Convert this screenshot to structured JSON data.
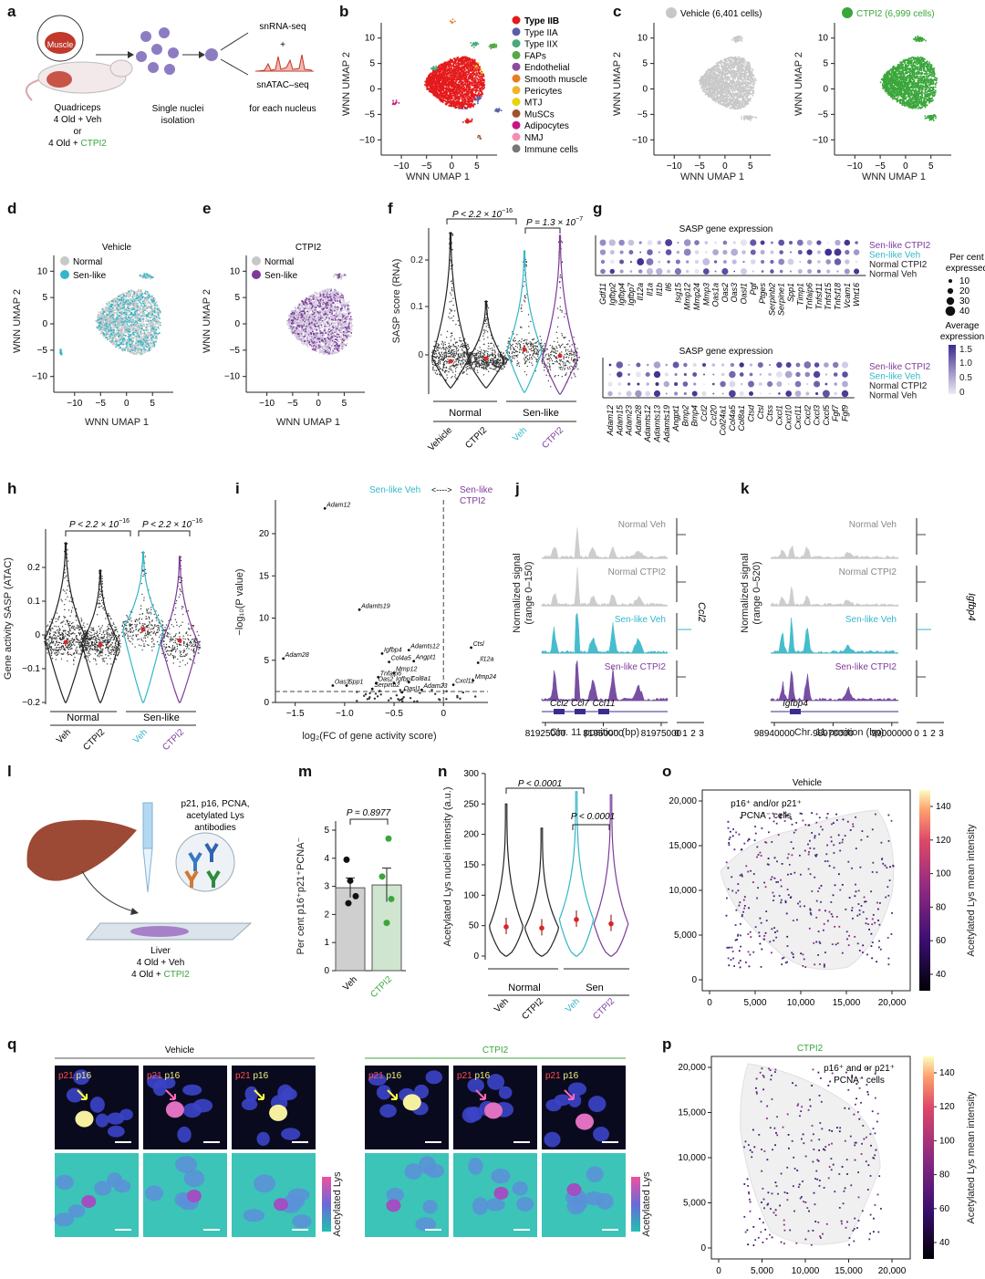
{
  "panel_letters": [
    "a",
    "b",
    "c",
    "d",
    "e",
    "f",
    "g",
    "h",
    "i",
    "j",
    "k",
    "l",
    "m",
    "n",
    "o",
    "q",
    "p"
  ],
  "colors": {
    "vehicle_grey": "#c8c8c8",
    "ctpi2_green": "#3aa63a",
    "sen_veh_cyan": "#33b6c8",
    "sen_ctpi2_purple": "#7d3b9a",
    "normal_black": "#222222",
    "mean_red": "#d62728"
  },
  "panel_a": {
    "muscle": "Muscle",
    "cohort_l1": "Quadriceps",
    "cohort_l2": "4 Old + Veh",
    "cohort_l3": "or",
    "cohort_l4a": "4 Old + ",
    "cohort_l4b": "CTPI2",
    "isolation_l1": "Single nuclei",
    "isolation_l2": "isolation",
    "rna": "snRNA-seq",
    "plus": "+",
    "atac": "snATAC–seq",
    "each": "for each nucleus"
  },
  "panel_b": {
    "xlabel": "WNN UMAP 1",
    "ylabel": "WNN UMAP 2",
    "xticks": [
      "−10",
      "−5",
      "0",
      "5"
    ],
    "yticks": [
      "10",
      "5",
      "0",
      "−5",
      "−10"
    ],
    "legend": [
      {
        "label": "Type IIB",
        "color": "#e41a1c"
      },
      {
        "label": "Type IIA",
        "color": "#5b5ea6"
      },
      {
        "label": "Type IIX",
        "color": "#4aa87a"
      },
      {
        "label": "FAPs",
        "color": "#55a845"
      },
      {
        "label": "Endothelial",
        "color": "#8e4a9e"
      },
      {
        "label": "Smooth muscle",
        "color": "#e67e22"
      },
      {
        "label": "Pericytes",
        "color": "#f0b429"
      },
      {
        "label": "MTJ",
        "color": "#e8d20a"
      },
      {
        "label": "MuSCs",
        "color": "#a0522d"
      },
      {
        "label": "Adipocytes",
        "color": "#c71585"
      },
      {
        "label": "NMJ",
        "color": "#f48fb1"
      },
      {
        "label": "Immune cells",
        "color": "#777777"
      }
    ]
  },
  "panel_c": {
    "veh_legend": "Vehicle (6,401 cells)",
    "ctpi2_legend": "CTPI2 (6,999 cells)",
    "xlabel": "WNN UMAP 1",
    "ylabel": "WNN UMAP 2",
    "xticks": [
      "−10",
      "−5",
      "0",
      "5"
    ],
    "yticks": [
      "10",
      "5",
      "0",
      "−5",
      "−10"
    ]
  },
  "panel_d": {
    "title": "Vehicle",
    "leg1": "Normal",
    "leg2": "Sen-like",
    "xlabel": "WNN UMAP 1",
    "ylabel": "WNN UMAP 2",
    "xticks": [
      "−10",
      "−5",
      "0",
      "5"
    ],
    "yticks": [
      "10",
      "5",
      "0",
      "−5",
      "−10"
    ]
  },
  "panel_e": {
    "title": "CTPI2",
    "leg1": "Normal",
    "leg2": "Sen-like",
    "xlabel": "WNN UMAP 1",
    "ylabel": "WNN UMAP 2",
    "xticks": [
      "−10",
      "−5",
      "0",
      "5"
    ],
    "yticks": [
      "10",
      "5",
      "0",
      "−5",
      "−10"
    ]
  },
  "panel_f": {
    "ylabel": "SASP score (RNA)",
    "yticks": [
      "0.2",
      "0.1",
      "0"
    ],
    "p1": "P < 2.2 × 10",
    "p1_exp": "−16",
    "p2": "P = 1.3 × 10",
    "p2_exp": "−7",
    "group1": "Normal",
    "group2": "Sen-like",
    "cats": [
      "Vehicle",
      "CTPI2",
      "Veh",
      "CTPI2"
    ]
  },
  "panel_g": {
    "title": "SASP gene expression",
    "rows": [
      "Sen-like CTPI2",
      "Sen-like Veh",
      "Normal CTPI2",
      "Normal Veh"
    ],
    "genes_top": [
      "Gdf11",
      "Igfbp2",
      "Igfbp4",
      "Igfbp7",
      "Il12a",
      "Il1a",
      "Il1b",
      "Il6",
      "Isg15",
      "Mmp12",
      "Mmp24",
      "Mmp3",
      "Oas1a",
      "Oas2",
      "Oas3",
      "Oasl1",
      "Pgf",
      "Ptges",
      "Serpinb2",
      "Serpine1",
      "Spp1",
      "Timp1",
      "Tnfaip6",
      "Tnfsf11",
      "Tnfsf15",
      "Tnfsf18",
      "Vcam1",
      "Wnt16"
    ],
    "genes_bottom": [
      "Adam12",
      "Adam15",
      "Adam23",
      "Adam28",
      "Adamts12",
      "Adamts13",
      "Adamts19",
      "Angpt1",
      "Bmp2",
      "Bmp4",
      "Ccl2",
      "Ccl20",
      "Col24a1",
      "Col4a5",
      "Col8a1",
      "Ctsd",
      "Ctsl",
      "Ctss",
      "Cxcl1",
      "Cxcl10",
      "Cxcl11",
      "Cxcl2",
      "Cxcl3",
      "Cxcl5",
      "Fgf7",
      "Fgf9"
    ],
    "pct_title_l1": "Per cent",
    "pct_title_l2": "expressed",
    "pct_values": [
      "10",
      "20",
      "30",
      "40"
    ],
    "avg_title_l1": "Average",
    "avg_title_l2": "expression",
    "avg_ticks": [
      "1.5",
      "1.0",
      "0.5",
      "0"
    ]
  },
  "panel_h": {
    "ylabel": "Gene activity SASP (ATAC)",
    "yticks": [
      "0.2",
      "0.1",
      "0",
      "−0.1",
      "−0.2"
    ],
    "p1": "P < 2.2 × 10",
    "p1_exp": "−16",
    "p2": "P < 2.2 × 10",
    "p2_exp": "−16",
    "group1": "Normal",
    "group2": "Sen-like",
    "cats": [
      "Veh",
      "CTPI2",
      "Veh",
      "CTPI2"
    ]
  },
  "panel_i": {
    "header_left": "Sen-like Veh",
    "header_arrow": "<---->",
    "header_right_l1": "Sen-like",
    "header_right_l2": "CTPI2",
    "ylabel": "−log₁₀(P value)",
    "xlabel": "log₂(FC of gene activity score)",
    "xticks": [
      "−1.5",
      "−1.0",
      "−0.5",
      "0"
    ],
    "yticks": [
      "0",
      "5",
      "10",
      "15",
      "20"
    ]
  },
  "chart_data": [
    {
      "type": "scatter",
      "panel": "i",
      "x_range": [
        -1.7,
        0.45
      ],
      "y_range": [
        0,
        24
      ],
      "threshold_y": 1.3,
      "labeled_points": [
        {
          "label": "Adam12",
          "x": -1.2,
          "y": 23.0
        },
        {
          "label": "Adamts19",
          "x": -0.85,
          "y": 11.0
        },
        {
          "label": "Adamts12",
          "x": -0.35,
          "y": 6.2
        },
        {
          "label": "Igfbp4",
          "x": -0.62,
          "y": 5.8
        },
        {
          "label": "Col4a5",
          "x": -0.55,
          "y": 4.8
        },
        {
          "label": "Angpt1",
          "x": -0.3,
          "y": 4.9
        },
        {
          "label": "Adam28",
          "x": -1.62,
          "y": 5.2
        },
        {
          "label": "Mmp12",
          "x": -0.5,
          "y": 3.5
        },
        {
          "label": "Tnfaip6",
          "x": -0.66,
          "y": 3.0
        },
        {
          "label": "Col8a1",
          "x": -0.35,
          "y": 2.4
        },
        {
          "label": "Igfbp7",
          "x": -0.5,
          "y": 2.3
        },
        {
          "label": "Oas2",
          "x": -0.68,
          "y": 2.3
        },
        {
          "label": "Oas3",
          "x": -1.12,
          "y": 2.0
        },
        {
          "label": "Spp1",
          "x": -0.98,
          "y": 2.0
        },
        {
          "label": "Serpinb2",
          "x": -0.72,
          "y": 1.6
        },
        {
          "label": "Oasl1",
          "x": -0.42,
          "y": 1.2
        },
        {
          "label": "Adam23",
          "x": -0.22,
          "y": 1.5
        },
        {
          "label": "Ctsl",
          "x": 0.28,
          "y": 6.5
        },
        {
          "label": "Il12a",
          "x": 0.35,
          "y": 4.7
        },
        {
          "label": "Cxcl11",
          "x": 0.1,
          "y": 2.1
        },
        {
          "label": "Mmp24",
          "x": 0.3,
          "y": 2.6
        }
      ]
    }
  ],
  "panel_j": {
    "ylabel_l1": "Normalized signal",
    "ylabel_l2": "(range 0–150)",
    "tracks": [
      "Normal Veh",
      "Normal CTPI2",
      "Sen-like Veh",
      "Sen-like CTPI2"
    ],
    "genes": [
      "Ccl2",
      "Ccl7",
      "Ccl11"
    ],
    "gene_side": "Ccl2",
    "xticks": [
      "81925000",
      "81950000",
      "81975000"
    ],
    "xlabel": "Chr. 11 position (bp)",
    "side_ticks": [
      "0",
      "1",
      "2",
      "3"
    ]
  },
  "panel_k": {
    "ylabel_l1": "Normalized signal",
    "ylabel_l2": "(range 0–520)",
    "tracks": [
      "Normal Veh",
      "Normal CTPI2",
      "Sen-like Veh",
      "Sen-like CTPI2"
    ],
    "gene": "Igfbp4",
    "gene_side": "Igfbp4",
    "xticks": [
      "98940000",
      "98970000",
      "99000000"
    ],
    "xlabel": "Chr. 11 position (bp)",
    "side_ticks": [
      "0",
      "1",
      "2",
      "3"
    ]
  },
  "panel_l": {
    "antibody_l1": "p21, p16, PCNA,",
    "antibody_l2": "acetylated Lys",
    "antibody_l3": "antibodies",
    "liver": "Liver",
    "c1": "4 Old + Veh",
    "c2a": "4 Old + ",
    "c2b": "CTPI2"
  },
  "panel_m": {
    "ylabel": "Per cent p16⁺p21⁺PCNA⁻",
    "p": "P = 0.8977",
    "yticks": [
      "0",
      "1",
      "2",
      "3",
      "4",
      "5"
    ],
    "cats": [
      "Veh",
      "CTPI2"
    ],
    "bar_means": [
      2.95,
      3.05
    ],
    "sem": [
      0.35,
      0.6
    ],
    "veh_points": [
      3.2,
      3.95,
      2.65,
      2.4
    ],
    "ctpi2_points": [
      4.7,
      3.35,
      2.55,
      1.7
    ]
  },
  "panel_n": {
    "ylabel": "Acetylated Lys nuclei intensity (a.u.)",
    "yticks": [
      "0",
      "50",
      "100",
      "150",
      "200",
      "250",
      "300"
    ],
    "p1": "P < 0.0001",
    "p2": "P < 0.0001",
    "group1": "Normal",
    "group2": "Sen",
    "cats": [
      "Veh",
      "CTPI2",
      "Veh",
      "CTPI2"
    ],
    "medians": [
      48,
      46,
      60,
      53
    ]
  },
  "panel_o": {
    "title": "Vehicle",
    "note_l1": "p16⁺ and/or p21⁺",
    "note_l2": "PCNA⁻ cells",
    "xticks": [
      "0",
      "5,000",
      "10,000",
      "15,000",
      "20,000"
    ],
    "yticks": [
      "0",
      "5,000",
      "10,000",
      "15,000",
      "20,000"
    ],
    "cbar_label": "Acetylated Lys mean intensity",
    "cbar_ticks": [
      "140",
      "120",
      "100",
      "80",
      "60",
      "40"
    ]
  },
  "panel_p": {
    "title": "CTPI2",
    "note_l1": "p16⁺ and or p21⁺",
    "note_l2": "PCNA⁻ cells",
    "xticks": [
      "0",
      "5,000",
      "10,000",
      "15,000",
      "20,000"
    ],
    "yticks": [
      "0",
      "5,000",
      "10,000",
      "15,000",
      "20,000"
    ],
    "cbar_label": "Acetylated Lys mean intensity",
    "cbar_ticks": [
      "140",
      "120",
      "100",
      "80",
      "60",
      "40"
    ]
  },
  "panel_q": {
    "veh_title": "Vehicle",
    "ctpi2_title": "CTPI2",
    "p21": "p21",
    "p16": "p16",
    "cbar_label": "Acetylated Lys"
  }
}
